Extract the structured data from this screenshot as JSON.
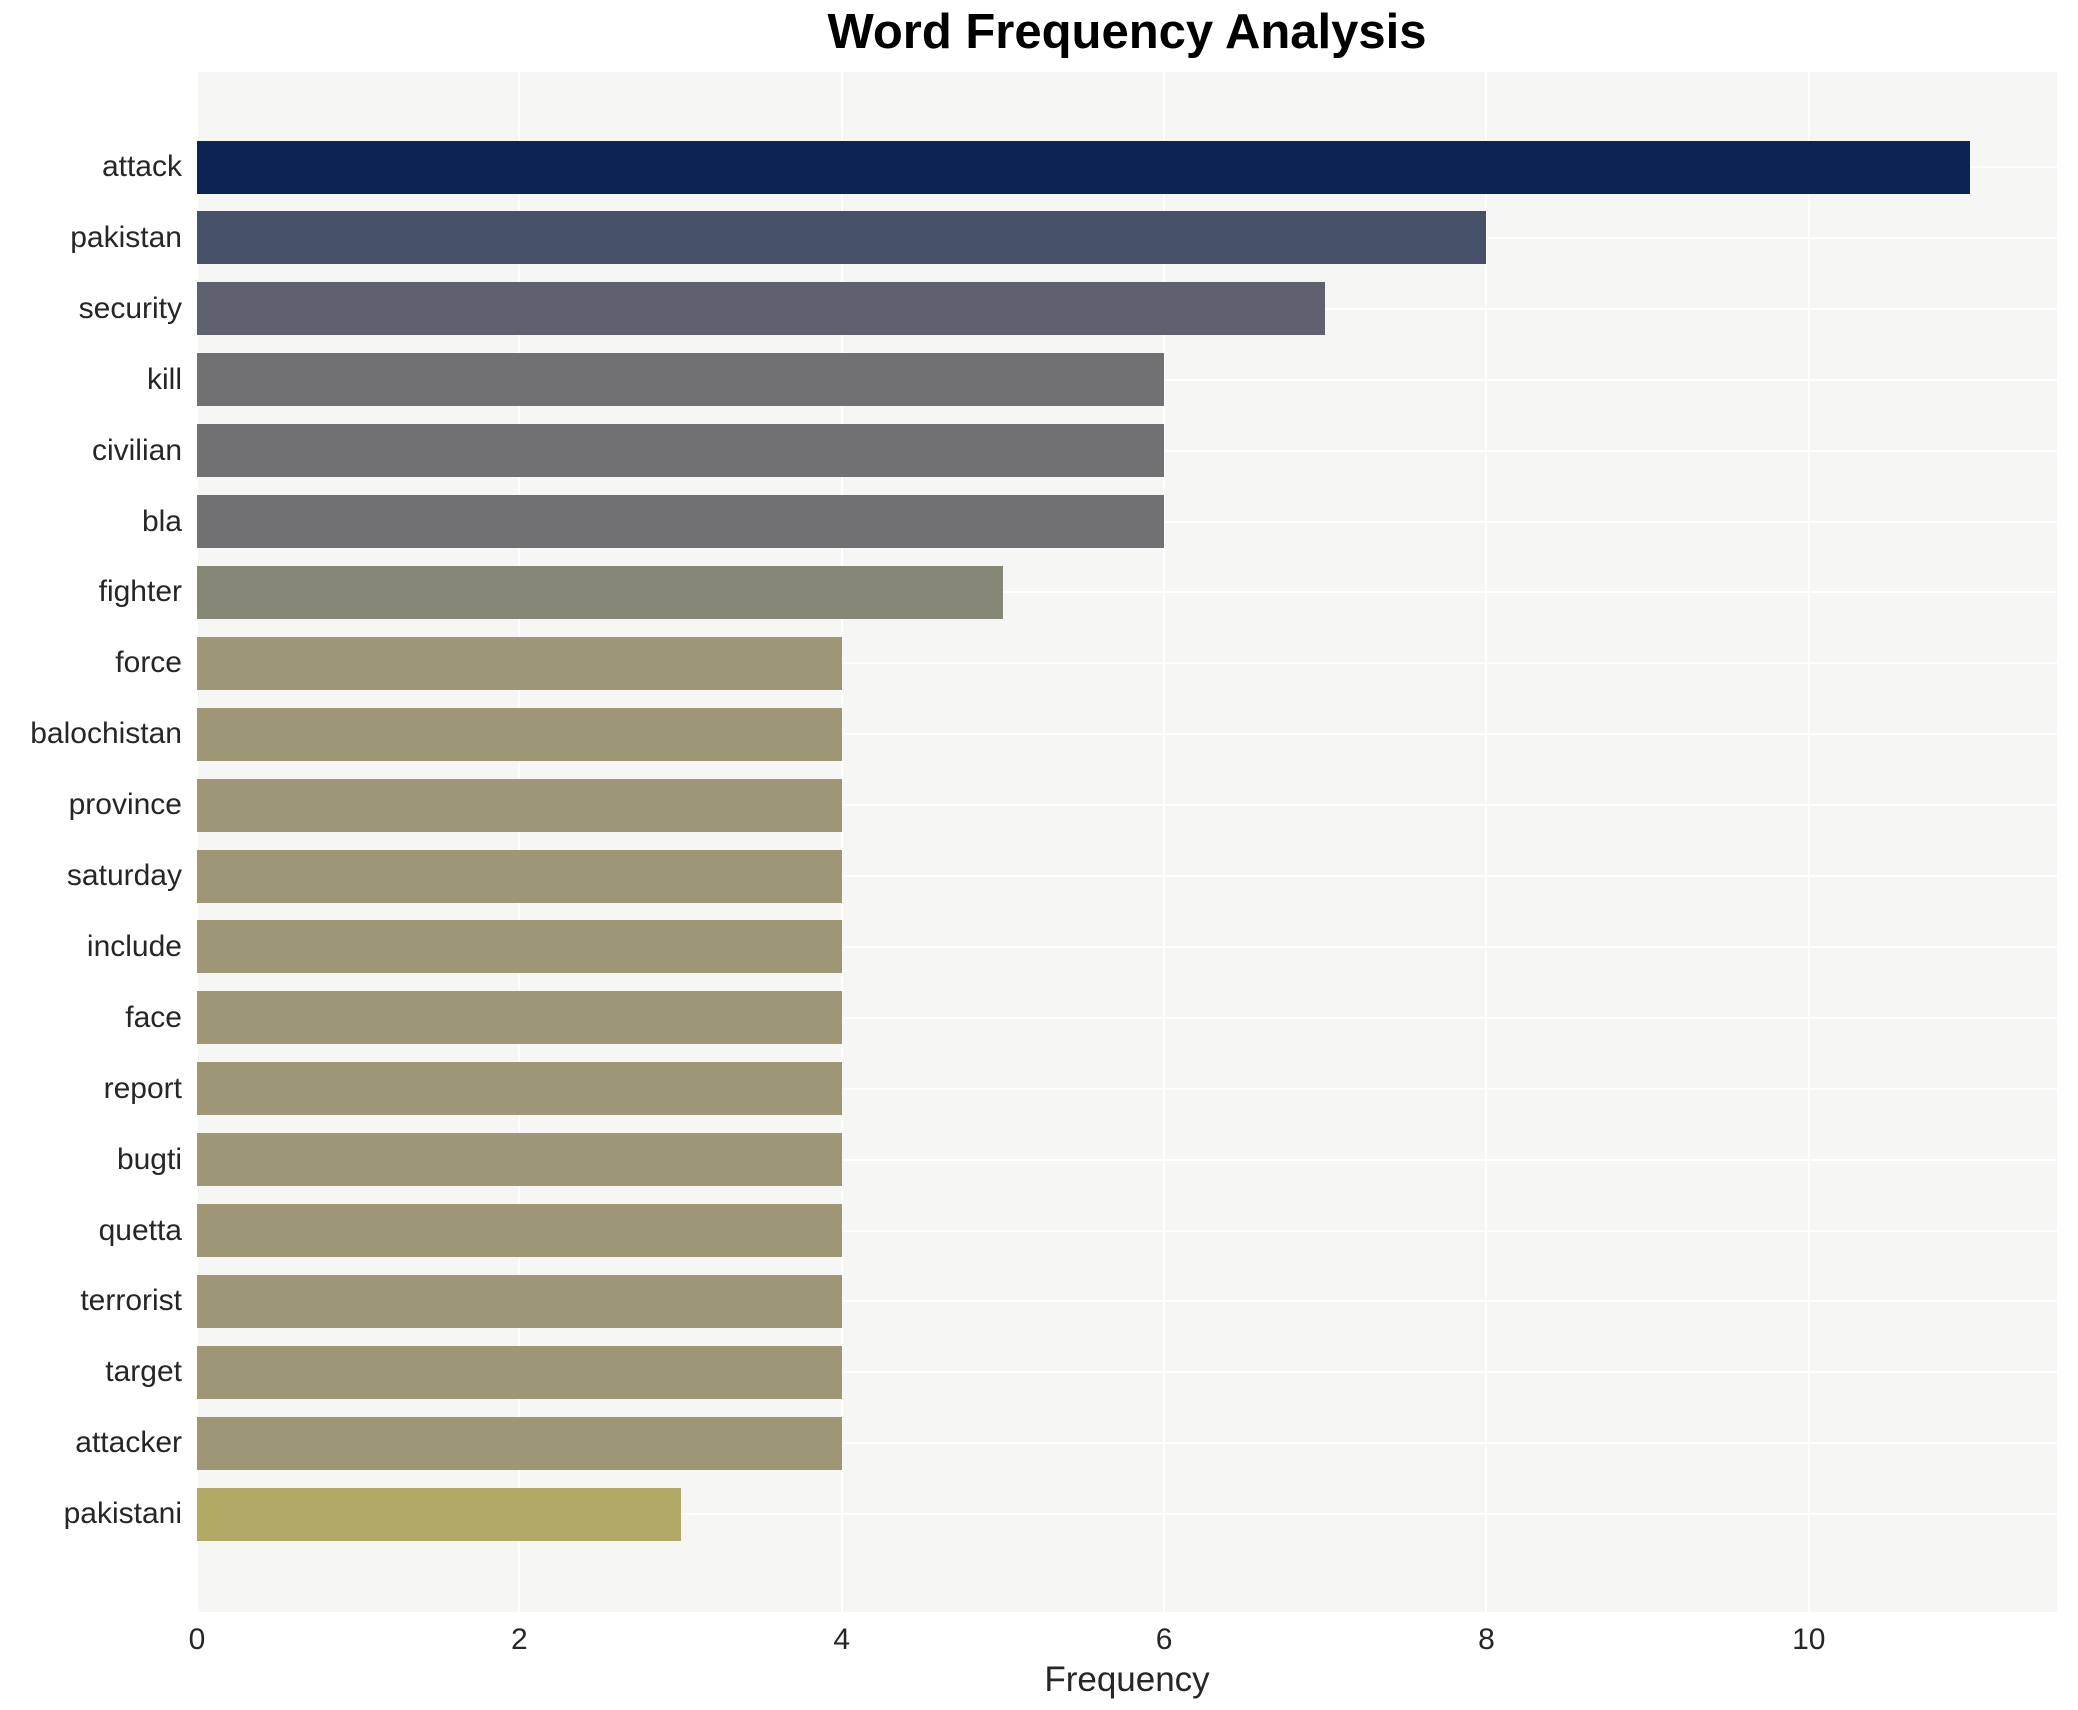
{
  "title": "Word Frequency Analysis",
  "xlabel": "Frequency",
  "chart_data": {
    "type": "bar",
    "orientation": "horizontal",
    "title": "Word Frequency Analysis",
    "xlabel": "Frequency",
    "ylabel": "",
    "categories": [
      "attack",
      "pakistan",
      "security",
      "kill",
      "civilian",
      "bla",
      "fighter",
      "force",
      "balochistan",
      "province",
      "saturday",
      "include",
      "face",
      "report",
      "bugti",
      "quetta",
      "terrorist",
      "target",
      "attacker",
      "pakistani"
    ],
    "values": [
      11,
      8,
      7,
      6,
      6,
      6,
      5,
      4,
      4,
      4,
      4,
      4,
      4,
      4,
      4,
      4,
      4,
      4,
      4,
      3
    ],
    "bar_colors": [
      "#0d2452",
      "#475069",
      "#5e626e",
      "#717174",
      "#717174",
      "#717174",
      "#878777",
      "#9e9776",
      "#9e9776",
      "#9e9776",
      "#9e9776",
      "#9e9776",
      "#9e9776",
      "#9e9776",
      "#9e9776",
      "#9e9776",
      "#9e9776",
      "#9e9776",
      "#9e9776",
      "#b3a967"
    ],
    "xticks": [
      0,
      2,
      4,
      6,
      8,
      10
    ],
    "xlim": [
      0,
      11.54
    ],
    "grid": true,
    "legend": "none",
    "plot_bg_color": "#f6f6f4",
    "grid_color": "#ffffff",
    "text_color": "#262626"
  }
}
